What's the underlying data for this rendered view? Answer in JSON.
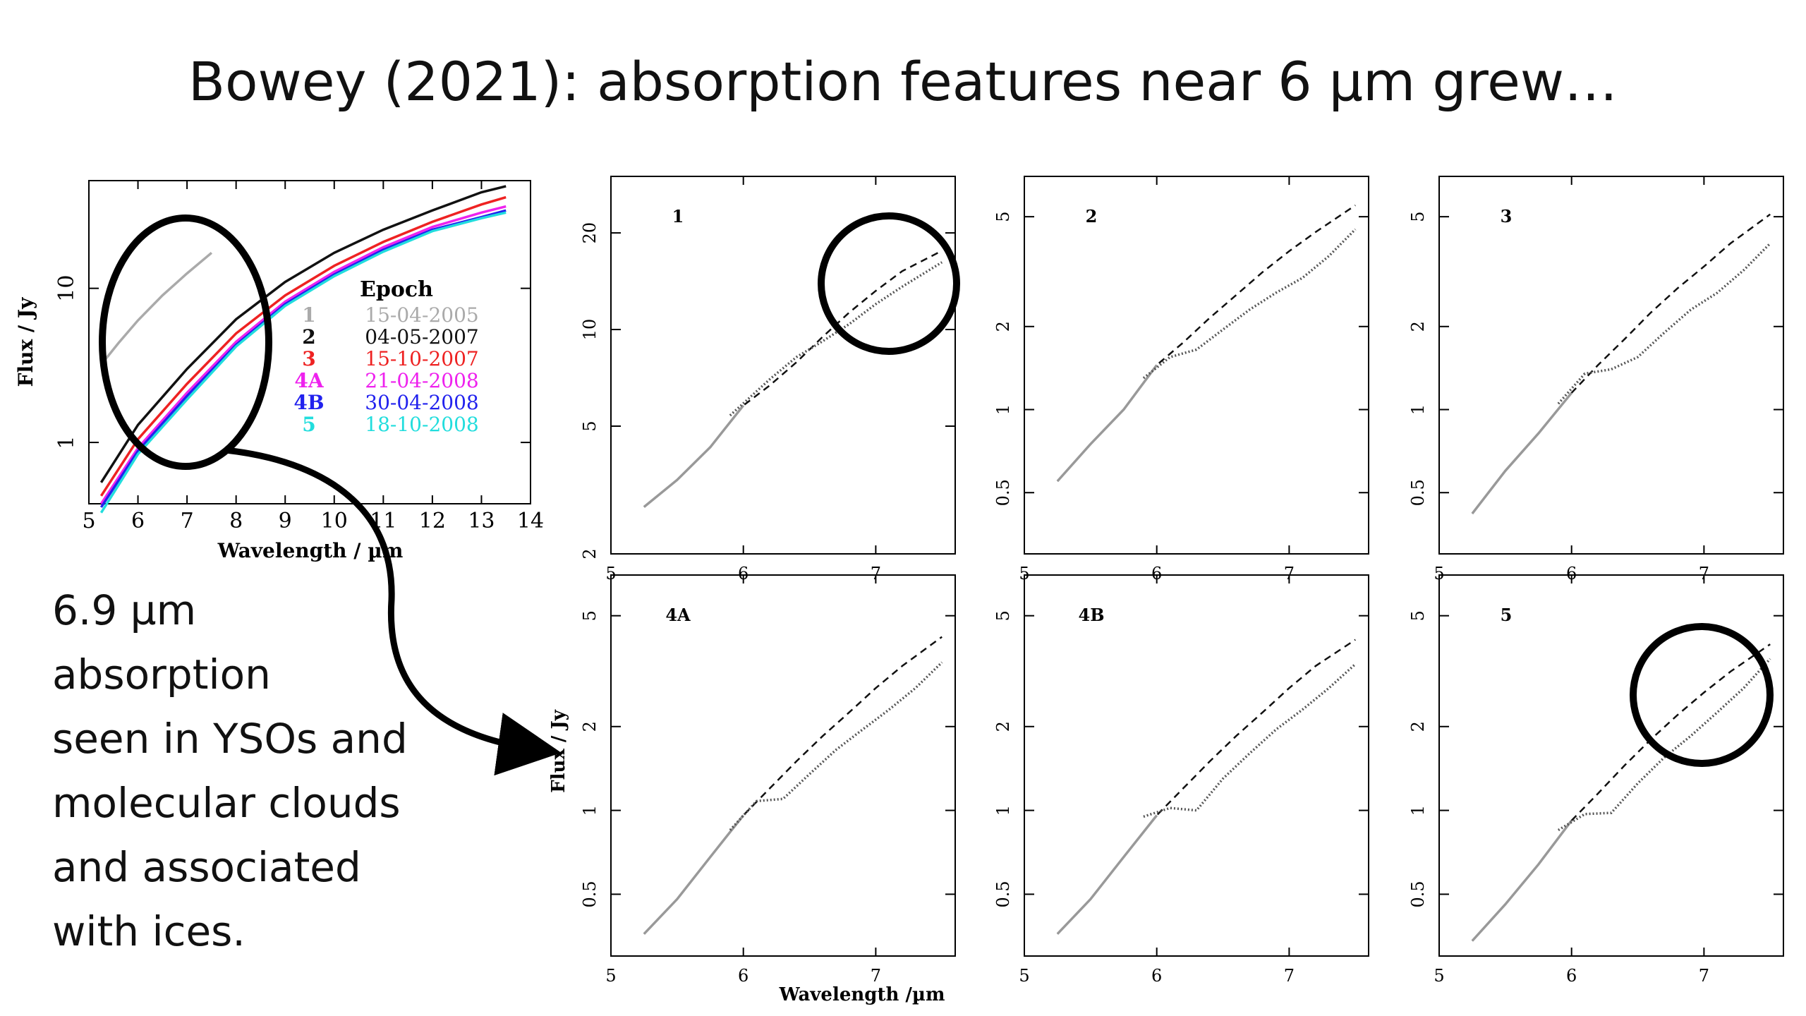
{
  "slide": {
    "title": "Bowey (2021): absorption features near 6 µm grew…",
    "caption_lines": [
      "6.9 µm",
      "absorption",
      "seen in YSOs and",
      "molecular clouds",
      "and associated",
      "with ices."
    ]
  },
  "chart_data": [
    {
      "type": "line",
      "id": "overview",
      "xlabel": "Wavelength / µm",
      "ylabel": "Flux / Jy",
      "xlim": [
        5,
        14
      ],
      "ylim_log": [
        0.4,
        50
      ],
      "yscale": "log",
      "xticks": [
        "5",
        "6",
        "7",
        "8",
        "9",
        "10",
        "11",
        "12",
        "13",
        "14"
      ],
      "yticks": [
        "1",
        "10"
      ],
      "legend": {
        "title": "Epoch",
        "placement": "center-right",
        "entries": [
          {
            "key": "1",
            "date": "15-04-2005",
            "color": "#aaaaaa"
          },
          {
            "key": "2",
            "date": "04-05-2007",
            "color": "#111111"
          },
          {
            "key": "3",
            "date": "15-10-2007",
            "color": "#ee2222"
          },
          {
            "key": "4A",
            "date": "21-04-2008",
            "color": "#ee22ee"
          },
          {
            "key": "4B",
            "date": "30-04-2008",
            "color": "#2222ee"
          },
          {
            "key": "5",
            "date": "18-10-2008",
            "color": "#22dddd"
          }
        ]
      },
      "series": [
        {
          "name": "1",
          "color": "#aaaaaa",
          "x": [
            5.25,
            5.6,
            6.0,
            6.5,
            7.0,
            7.5
          ],
          "y": [
            3.2,
            4.4,
            6.2,
            9.0,
            12.5,
            17.0
          ]
        },
        {
          "name": "2",
          "color": "#111111",
          "x": [
            5.25,
            6,
            7,
            8,
            9,
            10,
            11,
            12,
            13,
            13.5
          ],
          "y": [
            0.55,
            1.3,
            3.0,
            6.3,
            11,
            17,
            24,
            32,
            42,
            46
          ]
        },
        {
          "name": "3",
          "color": "#ee2222",
          "x": [
            5.25,
            6,
            7,
            8,
            9,
            10,
            11,
            12,
            13,
            13.5
          ],
          "y": [
            0.45,
            1.05,
            2.4,
            5.1,
            9.0,
            14,
            20,
            27,
            35,
            39
          ]
        },
        {
          "name": "4A",
          "color": "#ee22ee",
          "x": [
            5.25,
            6,
            7,
            8,
            9,
            10,
            11,
            12,
            13,
            13.5
          ],
          "y": [
            0.4,
            0.92,
            2.1,
            4.5,
            8.2,
            12.8,
            18.5,
            25,
            31,
            34
          ]
        },
        {
          "name": "4B",
          "color": "#2222ee",
          "x": [
            5.25,
            6,
            7,
            8,
            9,
            10,
            11,
            12,
            13,
            13.5
          ],
          "y": [
            0.38,
            0.88,
            2.0,
            4.3,
            7.9,
            12.3,
            17.8,
            24,
            29,
            32
          ]
        },
        {
          "name": "5",
          "color": "#22dddd",
          "x": [
            5.25,
            6,
            7,
            8,
            9,
            10,
            11,
            12,
            13,
            13.5
          ],
          "y": [
            0.35,
            0.84,
            1.9,
            4.2,
            7.7,
            12.0,
            17.3,
            23.5,
            28.5,
            31
          ]
        }
      ]
    },
    {
      "type": "line",
      "id": "epoch-1",
      "label": "1",
      "xlim": [
        5,
        7.6
      ],
      "ylim_log": [
        2,
        30
      ],
      "yscale": "log",
      "xticks": [
        "5",
        "6",
        "7"
      ],
      "yticks": [
        "2",
        "5",
        "10",
        "20"
      ],
      "series": [
        {
          "x": [
            5.25,
            5.5,
            5.75,
            6.0,
            6.2,
            6.4,
            6.6,
            6.8,
            7.0,
            7.2,
            7.5
          ],
          "y": [
            2.8,
            3.4,
            4.3,
            5.8,
            6.7,
            7.9,
            9.5,
            11.3,
            13.2,
            15.2,
            17.6
          ]
        },
        {
          "x": [
            5.9,
            6.2,
            6.4,
            6.6,
            6.8,
            7.0,
            7.2,
            7.5
          ],
          "y": [
            5.4,
            7.0,
            8.2,
            9.2,
            10.4,
            12.0,
            13.6,
            16.2
          ]
        }
      ]
    },
    {
      "type": "line",
      "id": "epoch-2",
      "label": "2",
      "xlim": [
        5,
        7.6
      ],
      "ylim_log": [
        0.3,
        7
      ],
      "yscale": "log",
      "xticks": [
        "5",
        "6",
        "7"
      ],
      "yticks": [
        "0.5",
        "1",
        "2",
        "5"
      ],
      "series": [
        {
          "x": [
            5.25,
            5.5,
            5.75,
            6.0,
            6.2,
            6.4,
            6.6,
            6.8,
            7.0,
            7.2,
            7.5
          ],
          "y": [
            0.55,
            0.75,
            1.0,
            1.45,
            1.75,
            2.15,
            2.6,
            3.15,
            3.75,
            4.4,
            5.5
          ]
        },
        {
          "x": [
            5.9,
            6.1,
            6.3,
            6.5,
            6.7,
            6.9,
            7.1,
            7.3,
            7.5
          ],
          "y": [
            1.3,
            1.55,
            1.65,
            1.95,
            2.3,
            2.65,
            3.0,
            3.6,
            4.5
          ]
        }
      ]
    },
    {
      "type": "line",
      "id": "epoch-3",
      "label": "3",
      "xlim": [
        5,
        7.6
      ],
      "ylim_log": [
        0.3,
        7
      ],
      "yscale": "log",
      "xticks": [
        "5",
        "6",
        "7"
      ],
      "yticks": [
        "0.5",
        "1",
        "2",
        "5"
      ],
      "series": [
        {
          "x": [
            5.25,
            5.5,
            5.75,
            6.0,
            6.2,
            6.4,
            6.6,
            6.8,
            7.0,
            7.2,
            7.5
          ],
          "y": [
            0.42,
            0.6,
            0.82,
            1.15,
            1.45,
            1.8,
            2.25,
            2.75,
            3.3,
            4.0,
            5.1
          ]
        },
        {
          "x": [
            5.9,
            6.1,
            6.3,
            6.5,
            6.7,
            6.9,
            7.1,
            7.3,
            7.5
          ],
          "y": [
            1.05,
            1.35,
            1.4,
            1.55,
            1.9,
            2.3,
            2.65,
            3.2,
            4.0
          ]
        }
      ]
    },
    {
      "type": "line",
      "id": "epoch-4a",
      "label": "4A",
      "xlim": [
        5,
        7.6
      ],
      "ylim_log": [
        0.3,
        7
      ],
      "yscale": "log",
      "xticks": [
        "5",
        "6",
        "7"
      ],
      "yticks": [
        "0.5",
        "1",
        "2",
        "5"
      ],
      "series": [
        {
          "x": [
            5.25,
            5.5,
            5.75,
            6.0,
            6.2,
            6.4,
            6.6,
            6.8,
            7.0,
            7.2,
            7.5
          ],
          "y": [
            0.36,
            0.48,
            0.68,
            0.96,
            1.2,
            1.5,
            1.85,
            2.25,
            2.75,
            3.3,
            4.2
          ]
        },
        {
          "x": [
            5.9,
            6.1,
            6.3,
            6.5,
            6.7,
            6.9,
            7.1,
            7.3,
            7.5
          ],
          "y": [
            0.85,
            1.08,
            1.1,
            1.35,
            1.65,
            1.95,
            2.3,
            2.75,
            3.4
          ]
        }
      ]
    },
    {
      "type": "line",
      "id": "epoch-4b",
      "label": "4B",
      "xlim": [
        5,
        7.6
      ],
      "ylim_log": [
        0.3,
        7
      ],
      "yscale": "log",
      "xticks": [
        "5",
        "6",
        "7"
      ],
      "yticks": [
        "0.5",
        "1",
        "2",
        "5"
      ],
      "series": [
        {
          "x": [
            5.25,
            5.5,
            5.75,
            6.0,
            6.2,
            6.4,
            6.6,
            6.8,
            7.0,
            7.2,
            7.5
          ],
          "y": [
            0.36,
            0.48,
            0.68,
            0.96,
            1.2,
            1.5,
            1.85,
            2.25,
            2.75,
            3.3,
            4.1
          ]
        },
        {
          "x": [
            5.9,
            6.1,
            6.3,
            6.5,
            6.7,
            6.9,
            7.1,
            7.3,
            7.5
          ],
          "y": [
            0.95,
            1.02,
            1.0,
            1.3,
            1.6,
            1.95,
            2.3,
            2.75,
            3.35
          ]
        }
      ]
    },
    {
      "type": "line",
      "id": "epoch-5",
      "label": "5",
      "xlim": [
        5,
        7.6
      ],
      "ylim_log": [
        0.3,
        7
      ],
      "yscale": "log",
      "xticks": [
        "5",
        "6",
        "7"
      ],
      "yticks": [
        "0.5",
        "1",
        "2",
        "5"
      ],
      "series": [
        {
          "x": [
            5.25,
            5.5,
            5.75,
            6.0,
            6.2,
            6.4,
            6.6,
            6.8,
            7.0,
            7.2,
            7.5
          ],
          "y": [
            0.34,
            0.46,
            0.64,
            0.92,
            1.15,
            1.45,
            1.8,
            2.2,
            2.65,
            3.15,
            3.95
          ]
        },
        {
          "x": [
            5.9,
            6.1,
            6.3,
            6.5,
            6.7,
            6.9,
            7.1,
            7.3,
            7.5
          ],
          "y": [
            0.85,
            0.97,
            0.98,
            1.25,
            1.55,
            1.85,
            2.25,
            2.75,
            3.5
          ]
        }
      ]
    }
  ],
  "grid_labels": {
    "xlabel": "Wavelength /µm",
    "ylabel": "Flux / Jy"
  }
}
